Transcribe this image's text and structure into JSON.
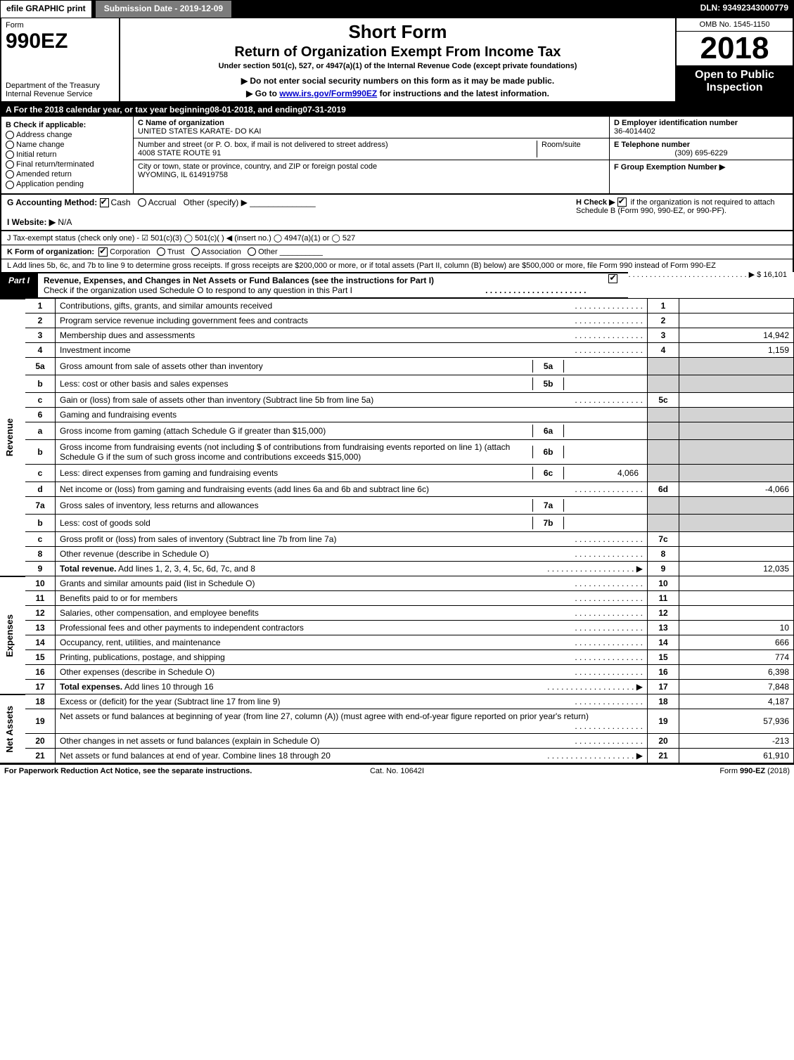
{
  "top_bar": {
    "efile": "efile GRAPHIC print",
    "submission": "Submission Date - 2019-12-09",
    "dln": "DLN: 93492343000779"
  },
  "header": {
    "form_label": "Form",
    "form_number": "990EZ",
    "dept1": "Department of the Treasury",
    "dept2": "Internal Revenue Service",
    "short_form": "Short Form",
    "return_title": "Return of Organization Exempt From Income Tax",
    "under": "Under section 501(c), 527, or 4947(a)(1) of the Internal Revenue Code (except private foundations)",
    "do_not": "▶ Do not enter social security numbers on this form as it may be made public.",
    "goto_pre": "▶ Go to ",
    "goto_link": "www.irs.gov/Form990EZ",
    "goto_post": " for instructions and the latest information.",
    "omb": "OMB No. 1545-1150",
    "year": "2018",
    "open": "Open to Public Inspection"
  },
  "period": {
    "a_pre": "A For the 2018 calendar year, or tax year beginning ",
    "begin": "08-01-2018",
    "mid": " , and ending ",
    "end": "07-31-2019"
  },
  "box_b": {
    "title": "B  Check if applicable:",
    "opts": [
      "Address change",
      "Name change",
      "Initial return",
      "Final return/terminated",
      "Amended return",
      "Application pending"
    ]
  },
  "box_c": {
    "c_label": "C Name of organization",
    "org": "UNITED STATES KARATE- DO KAI",
    "addr_label": "Number and street (or P. O. box, if mail is not delivered to street address)",
    "addr": "4008 STATE ROUTE 91",
    "room_label": "Room/suite",
    "city_label": "City or town, state or province, country, and ZIP or foreign postal code",
    "city": "WYOMING, IL  614919758"
  },
  "box_d": {
    "d_label": "D Employer identification number",
    "ein": "36-4014402",
    "e_label": "E Telephone number",
    "phone": "(309) 695-6229",
    "f_label": "F Group Exemption Number  ▶"
  },
  "g_line": {
    "g": "G Accounting Method:",
    "cash": "Cash",
    "accrual": "Accrual",
    "other": "Other (specify) ▶",
    "h": "H  Check ▶",
    "h_text": "if the organization is not required to attach Schedule B (Form 990, 990-EZ, or 990-PF)."
  },
  "i_line": {
    "label": "I Website: ▶",
    "val": "N/A"
  },
  "j_line": "J Tax-exempt status (check only one) -  ☑ 501(c)(3)  ◯ 501(c)(  ) ◀ (insert no.)  ◯ 4947(a)(1) or  ◯ 527",
  "k_line": {
    "label": "K Form of organization:",
    "corp": "Corporation",
    "trust": "Trust",
    "assoc": "Association",
    "other": "Other"
  },
  "l_line": {
    "text": "L Add lines 5b, 6c, and 7b to line 9 to determine gross receipts. If gross receipts are $200,000 or more, or if total assets (Part II, column (B) below) are $500,000 or more, file Form 990 instead of Form 990-EZ",
    "arrow": "▶ $",
    "val": "16,101"
  },
  "part1": {
    "label": "Part I",
    "title": "Revenue, Expenses, and Changes in Net Assets or Fund Balances (see the instructions for Part I)",
    "check": "Check if the organization used Schedule O to respond to any question in this Part I"
  },
  "sections": {
    "revenue": "Revenue",
    "expenses": "Expenses",
    "netassets": "Net Assets"
  },
  "rows": [
    {
      "sec": "rev",
      "ln": "1",
      "desc": "Contributions, gifts, grants, and similar amounts received",
      "num": "1",
      "val": ""
    },
    {
      "sec": "rev",
      "ln": "2",
      "desc": "Program service revenue including government fees and contracts",
      "num": "2",
      "val": ""
    },
    {
      "sec": "rev",
      "ln": "3",
      "desc": "Membership dues and assessments",
      "num": "3",
      "val": "14,942"
    },
    {
      "sec": "rev",
      "ln": "4",
      "desc": "Investment income",
      "num": "4",
      "val": "1,159"
    },
    {
      "sec": "rev",
      "ln": "5a",
      "desc": "Gross amount from sale of assets other than inventory",
      "sub": "5a",
      "subval": "",
      "grey": true
    },
    {
      "sec": "rev",
      "ln": "b",
      "desc": "Less: cost or other basis and sales expenses",
      "sub": "5b",
      "subval": "",
      "grey": true
    },
    {
      "sec": "rev",
      "ln": "c",
      "desc": "Gain or (loss) from sale of assets other than inventory (Subtract line 5b from line 5a)",
      "num": "5c",
      "val": ""
    },
    {
      "sec": "rev",
      "ln": "6",
      "desc": "Gaming and fundraising events",
      "grey_full": true
    },
    {
      "sec": "rev",
      "ln": "a",
      "desc": "Gross income from gaming (attach Schedule G if greater than $15,000)",
      "sub": "6a",
      "subval": "",
      "grey": true
    },
    {
      "sec": "rev",
      "ln": "b",
      "desc": "Gross income from fundraising events (not including $                      of contributions from fundraising events reported on line 1) (attach Schedule G if the sum of such gross income and contributions exceeds $15,000)",
      "sub": "6b",
      "subval": "",
      "grey": true
    },
    {
      "sec": "rev",
      "ln": "c",
      "desc": "Less: direct expenses from gaming and fundraising events",
      "sub": "6c",
      "subval": "4,066",
      "grey": true
    },
    {
      "sec": "rev",
      "ln": "d",
      "desc": "Net income or (loss) from gaming and fundraising events (add lines 6a and 6b and subtract line 6c)",
      "num": "6d",
      "val": "-4,066"
    },
    {
      "sec": "rev",
      "ln": "7a",
      "desc": "Gross sales of inventory, less returns and allowances",
      "sub": "7a",
      "subval": "",
      "grey": true
    },
    {
      "sec": "rev",
      "ln": "b",
      "desc": "Less: cost of goods sold",
      "sub": "7b",
      "subval": "",
      "grey": true
    },
    {
      "sec": "rev",
      "ln": "c",
      "desc": "Gross profit or (loss) from sales of inventory (Subtract line 7b from line 7a)",
      "num": "7c",
      "val": ""
    },
    {
      "sec": "rev",
      "ln": "8",
      "desc": "Other revenue (describe in Schedule O)",
      "num": "8",
      "val": ""
    },
    {
      "sec": "rev",
      "ln": "9",
      "desc": "Total revenue. Add lines 1, 2, 3, 4, 5c, 6d, 7c, and 8",
      "num": "9",
      "val": "12,035",
      "bold": true,
      "arrow": true
    },
    {
      "sec": "exp",
      "ln": "10",
      "desc": "Grants and similar amounts paid (list in Schedule O)",
      "num": "10",
      "val": ""
    },
    {
      "sec": "exp",
      "ln": "11",
      "desc": "Benefits paid to or for members",
      "num": "11",
      "val": ""
    },
    {
      "sec": "exp",
      "ln": "12",
      "desc": "Salaries, other compensation, and employee benefits",
      "num": "12",
      "val": ""
    },
    {
      "sec": "exp",
      "ln": "13",
      "desc": "Professional fees and other payments to independent contractors",
      "num": "13",
      "val": "10"
    },
    {
      "sec": "exp",
      "ln": "14",
      "desc": "Occupancy, rent, utilities, and maintenance",
      "num": "14",
      "val": "666"
    },
    {
      "sec": "exp",
      "ln": "15",
      "desc": "Printing, publications, postage, and shipping",
      "num": "15",
      "val": "774"
    },
    {
      "sec": "exp",
      "ln": "16",
      "desc": "Other expenses (describe in Schedule O)",
      "num": "16",
      "val": "6,398"
    },
    {
      "sec": "exp",
      "ln": "17",
      "desc": "Total expenses. Add lines 10 through 16",
      "num": "17",
      "val": "7,848",
      "bold": true,
      "arrow": true
    },
    {
      "sec": "net",
      "ln": "18",
      "desc": "Excess or (deficit) for the year (Subtract line 17 from line 9)",
      "num": "18",
      "val": "4,187"
    },
    {
      "sec": "net",
      "ln": "19",
      "desc": "Net assets or fund balances at beginning of year (from line 27, column (A)) (must agree with end-of-year figure reported on prior year's return)",
      "num": "19",
      "val": "57,936"
    },
    {
      "sec": "net",
      "ln": "20",
      "desc": "Other changes in net assets or fund balances (explain in Schedule O)",
      "num": "20",
      "val": "-213"
    },
    {
      "sec": "net",
      "ln": "21",
      "desc": "Net assets or fund balances at end of year. Combine lines 18 through 20",
      "num": "21",
      "val": "61,910",
      "arrow": true
    }
  ],
  "footer": {
    "left": "For Paperwork Reduction Act Notice, see the separate instructions.",
    "center": "Cat. No. 10642I",
    "right": "Form 990-EZ (2018)"
  }
}
